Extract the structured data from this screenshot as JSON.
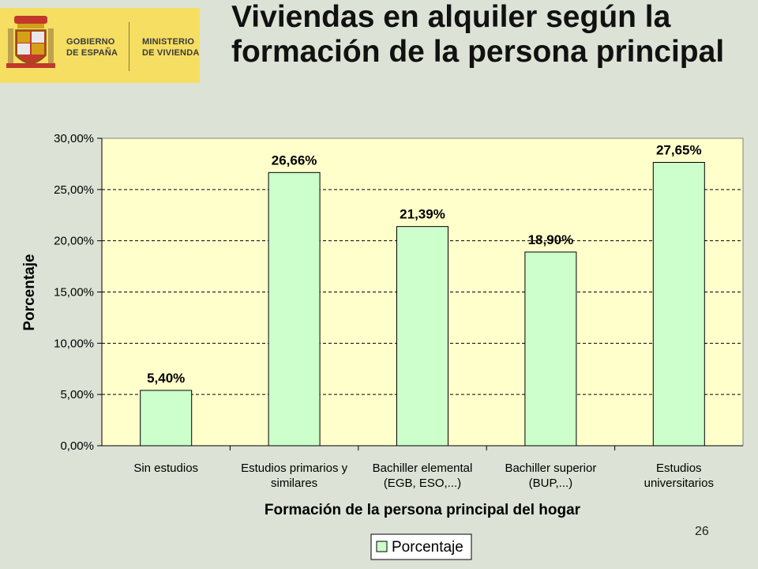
{
  "logo": {
    "line1": "GOBIERNO DE ESPAÑA",
    "line2": "MINISTERIO DE VIVIENDA"
  },
  "title": "Viviendas en alquiler según  la formación de la persona principal",
  "page_number": "26",
  "colors": {
    "plot_bg": "#ffffcc",
    "bar_fill": "#ccffcc",
    "bar_stroke": "#000000",
    "slide_bg": "#dce3d6",
    "logo_bg": "#f5de62"
  },
  "chart_data": {
    "type": "bar",
    "categories": [
      [
        "Sin estudios"
      ],
      [
        "Estudios primarios y",
        "similares"
      ],
      [
        "Bachiller elemental",
        "(EGB, ESO,...)"
      ],
      [
        "Bachiller superior",
        "(BUP,...)"
      ],
      [
        "Estudios",
        "universitarios"
      ]
    ],
    "series": [
      {
        "name": "Porcentaje",
        "values": [
          5.4,
          26.66,
          21.39,
          18.9,
          27.65
        ],
        "labels": [
          "5,40%",
          "26,66%",
          "21,39%",
          "18,90%",
          "27,65%"
        ]
      }
    ],
    "xlabel": "Formación de la persona principal del hogar",
    "ylabel": "Porcentaje",
    "ylim": [
      0,
      30
    ],
    "yticks": [
      "0,00%",
      "5,00%",
      "10,00%",
      "15,00%",
      "20,00%",
      "25,00%",
      "30,00%"
    ],
    "grid": true,
    "legend": "bottom"
  }
}
